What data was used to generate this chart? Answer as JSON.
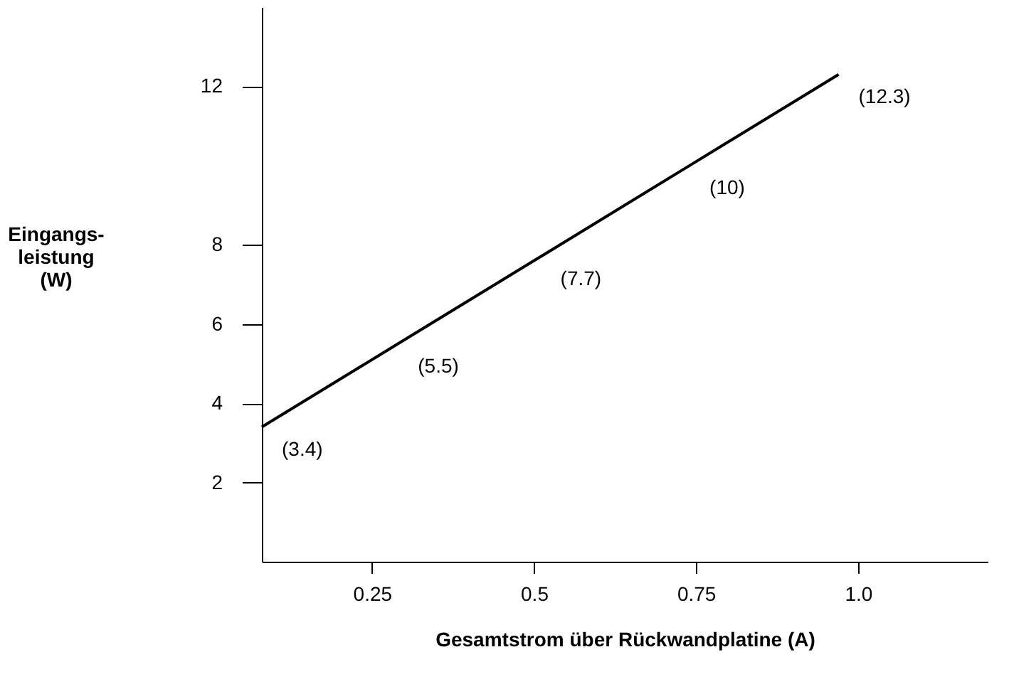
{
  "chart_data": {
    "type": "line",
    "xlabel": "Gesamtstrom über Rückwandplatine (A)",
    "ylabel": "Eingangs-\nleistung\n(W)",
    "x": [
      0.08,
      0.29,
      0.51,
      0.74,
      0.97
    ],
    "series": [
      {
        "color": "#000000",
        "values": [
          3.4,
          5.5,
          7.7,
          10,
          12.3
        ]
      }
    ],
    "value_labels": [
      "(3.4)",
      "(5.5)",
      "(7.7)",
      "(10)",
      "(12.3)"
    ],
    "xlim": [
      0.08,
      1.2
    ],
    "xticks": [
      0.25,
      0.5,
      0.75,
      {
        "value": 1.0,
        "label": "1.0"
      }
    ],
    "ylim": [
      0,
      14
    ],
    "yticks": [
      2,
      4,
      6,
      8,
      12
    ],
    "grid": false,
    "marker": "none",
    "line_style": "solid"
  }
}
